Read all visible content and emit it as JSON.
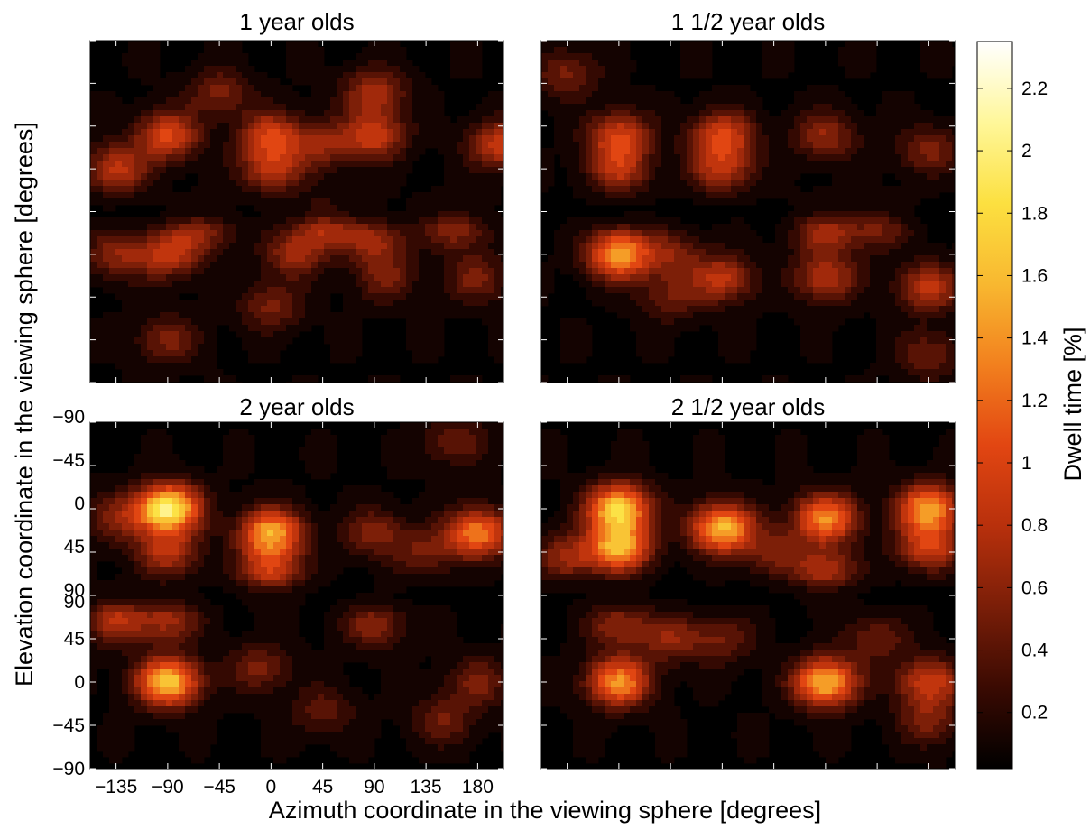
{
  "chart_data": {
    "type": "heatmap",
    "xlabel": "Azimuth coordinate in the viewing sphere [degrees]",
    "ylabel": "Elevation coordinate in the viewing sphere [degrees]",
    "xticks": [
      "−135",
      "−90",
      "−45",
      "0",
      "45",
      "90",
      "135",
      "180"
    ],
    "yticks_top_half": [
      "−90",
      "−45",
      "0",
      "45",
      "90"
    ],
    "yticks_bottom_half": [
      "90",
      "45",
      "0",
      "−45",
      "−90"
    ],
    "x_range": [
      -157.5,
      202.5
    ],
    "colorbar": {
      "label": "Dwell time [%]",
      "ticks": [
        "0.2",
        "0.4",
        "0.6",
        "0.8",
        "1",
        "1.2",
        "1.4",
        "1.6",
        "1.8",
        "2",
        "2.2"
      ],
      "range": [
        0.02,
        2.35
      ],
      "colormap": [
        "#000000",
        "#3a0a02",
        "#7a1e08",
        "#b8300c",
        "#e24612",
        "#f2801e",
        "#f8b830",
        "#fce040",
        "#fff79a",
        "#ffffff"
      ]
    },
    "panels": [
      {
        "title": "1 year olds",
        "hotspots": [
          {
            "az": -90,
            "el_top": 10,
            "value": 1.0
          },
          {
            "az": -135,
            "el_top": 45,
            "value": 0.8
          },
          {
            "az": 0,
            "el_top": 10,
            "value": 0.9
          },
          {
            "az": 0,
            "el_top": 45,
            "value": 0.75
          },
          {
            "az": 90,
            "el_top": 10,
            "value": 0.85
          },
          {
            "az": 90,
            "el_top": -35,
            "value": 0.7
          },
          {
            "az": 200,
            "el_top": 20,
            "value": 0.85
          },
          {
            "az": 45,
            "el_top": 20,
            "value": 0.55
          },
          {
            "az": -45,
            "el_top": -35,
            "value": 0.5
          },
          {
            "az": -90,
            "el_bottom": 45,
            "value": 0.8
          },
          {
            "az": -135,
            "el_bottom": 45,
            "value": 0.55
          },
          {
            "az": 45,
            "el_bottom": 75,
            "value": 0.7
          },
          {
            "az": 90,
            "el_bottom": 60,
            "value": 0.65
          },
          {
            "az": 160,
            "el_bottom": 75,
            "value": 0.65
          },
          {
            "az": 20,
            "el_bottom": 45,
            "value": 0.6
          },
          {
            "az": -60,
            "el_bottom": 70,
            "value": 0.55
          },
          {
            "az": 0,
            "el_bottom": -10,
            "value": 0.5
          },
          {
            "az": -90,
            "el_bottom": -45,
            "value": 0.5
          },
          {
            "az": 180,
            "el_bottom": 20,
            "value": 0.5
          },
          {
            "az": 100,
            "el_bottom": 20,
            "value": 0.45
          }
        ]
      },
      {
        "title": "1 1/2 year olds",
        "hotspots": [
          {
            "az": -90,
            "el_top": 10,
            "value": 0.9
          },
          {
            "az": -90,
            "el_top": 45,
            "value": 0.75
          },
          {
            "az": 0,
            "el_top": 10,
            "value": 0.95
          },
          {
            "az": 0,
            "el_top": 45,
            "value": 0.75
          },
          {
            "az": 90,
            "el_top": 10,
            "value": 0.6
          },
          {
            "az": 180,
            "el_top": 25,
            "value": 0.5
          },
          {
            "az": -135,
            "el_top": -55,
            "value": 0.5
          },
          {
            "az": -90,
            "el_bottom": 45,
            "value": 1.5
          },
          {
            "az": -45,
            "el_bottom": 45,
            "value": 0.5
          },
          {
            "az": 0,
            "el_bottom": 20,
            "value": 0.8
          },
          {
            "az": 90,
            "el_bottom": 20,
            "value": 0.75
          },
          {
            "az": 90,
            "el_bottom": 70,
            "value": 0.7
          },
          {
            "az": 135,
            "el_bottom": 75,
            "value": 0.5
          },
          {
            "az": 180,
            "el_bottom": 10,
            "value": 0.8
          },
          {
            "az": 180,
            "el_bottom": -60,
            "value": 0.45
          },
          {
            "az": -45,
            "el_bottom": 0,
            "value": 0.45
          }
        ]
      },
      {
        "title": "2 year olds",
        "hotspots": [
          {
            "az": -90,
            "el_top": 0,
            "value": 2.05
          },
          {
            "az": -90,
            "el_top": 45,
            "value": 0.75
          },
          {
            "az": 0,
            "el_top": 25,
            "value": 1.5
          },
          {
            "az": 0,
            "el_top": 65,
            "value": 0.9
          },
          {
            "az": 180,
            "el_top": 25,
            "value": 1.3
          },
          {
            "az": 90,
            "el_top": 25,
            "value": 0.55
          },
          {
            "az": -135,
            "el_top": 10,
            "value": 0.5
          },
          {
            "az": 135,
            "el_top": 45,
            "value": 0.45
          },
          {
            "az": 160,
            "el_top": -70,
            "value": 0.45
          },
          {
            "az": -90,
            "el_bottom": 0,
            "value": 1.7
          },
          {
            "az": -135,
            "el_bottom": 65,
            "value": 0.75
          },
          {
            "az": -90,
            "el_bottom": 65,
            "value": 0.65
          },
          {
            "az": -10,
            "el_bottom": 15,
            "value": 0.5
          },
          {
            "az": 90,
            "el_bottom": 60,
            "value": 0.55
          },
          {
            "az": 180,
            "el_bottom": 0,
            "value": 0.5
          },
          {
            "az": 150,
            "el_bottom": -40,
            "value": 0.45
          },
          {
            "az": 45,
            "el_bottom": -30,
            "value": 0.4
          }
        ]
      },
      {
        "title": "2 1/2 year olds",
        "hotspots": [
          {
            "az": -90,
            "el_top": 0,
            "value": 1.75
          },
          {
            "az": -90,
            "el_top": 40,
            "value": 1.55
          },
          {
            "az": 0,
            "el_top": 20,
            "value": 1.6
          },
          {
            "az": 90,
            "el_top": 10,
            "value": 1.35
          },
          {
            "az": 90,
            "el_top": 65,
            "value": 0.75
          },
          {
            "az": 180,
            "el_top": 0,
            "value": 1.45
          },
          {
            "az": 180,
            "el_top": 40,
            "value": 0.9
          },
          {
            "az": -135,
            "el_top": 50,
            "value": 0.6
          },
          {
            "az": 45,
            "el_top": 45,
            "value": 0.5
          },
          {
            "az": -90,
            "el_bottom": 0,
            "value": 1.4
          },
          {
            "az": 90,
            "el_bottom": 0,
            "value": 1.6
          },
          {
            "az": 180,
            "el_bottom": 0,
            "value": 0.9
          },
          {
            "az": -90,
            "el_bottom": 60,
            "value": 0.6
          },
          {
            "az": -45,
            "el_bottom": 45,
            "value": 0.55
          },
          {
            "az": 135,
            "el_bottom": 45,
            "value": 0.45
          },
          {
            "az": 180,
            "el_bottom": -40,
            "value": 0.5
          },
          {
            "az": 0,
            "el_bottom": 45,
            "value": 0.45
          }
        ]
      }
    ]
  }
}
